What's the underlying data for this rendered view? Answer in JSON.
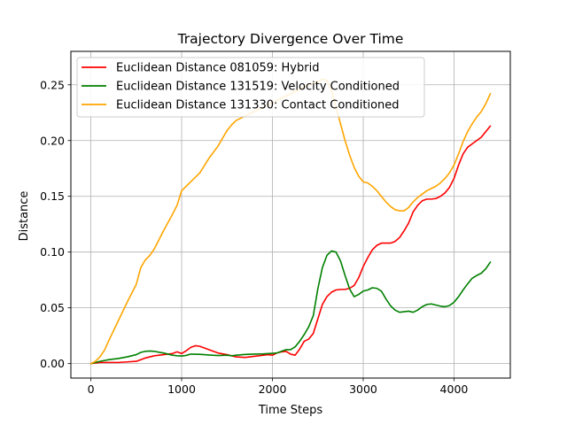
{
  "chart_data": {
    "type": "line",
    "title": "Trajectory Divergence Over Time",
    "xlabel": "Time Steps",
    "ylabel": "Distance",
    "xlim": [
      -220,
      4620
    ],
    "ylim": [
      -0.013,
      0.28
    ],
    "xticks": [
      0,
      1000,
      2000,
      3000,
      4000
    ],
    "xtick_labels": [
      "0",
      "1000",
      "2000",
      "3000",
      "4000"
    ],
    "yticks": [
      0.0,
      0.05,
      0.1,
      0.15,
      0.2,
      0.25
    ],
    "ytick_labels": [
      "0.00",
      "0.05",
      "0.10",
      "0.15",
      "0.20",
      "0.25"
    ],
    "grid": true,
    "legend_position": "top-left",
    "series": [
      {
        "name": "Euclidean Distance 081059: Hybrid",
        "color": "#ff0000",
        "x": [
          0,
          100,
          200,
          300,
          400,
          500,
          550,
          600,
          700,
          800,
          900,
          950,
          1000,
          1050,
          1100,
          1150,
          1200,
          1300,
          1400,
          1500,
          1600,
          1700,
          1800,
          1900,
          1950,
          2000,
          2050,
          2100,
          2150,
          2200,
          2250,
          2300,
          2350,
          2400,
          2450,
          2500,
          2550,
          2600,
          2650,
          2700,
          2750,
          2800,
          2850,
          2900,
          2950,
          3000,
          3050,
          3100,
          3150,
          3200,
          3250,
          3300,
          3350,
          3400,
          3450,
          3500,
          3550,
          3600,
          3650,
          3700,
          3750,
          3800,
          3850,
          3900,
          3950,
          4000,
          4050,
          4100,
          4150,
          4200,
          4250,
          4300,
          4350,
          4400
        ],
        "y": [
          0.0,
          0.001,
          0.001,
          0.001,
          0.0015,
          0.002,
          0.0035,
          0.005,
          0.007,
          0.008,
          0.009,
          0.0105,
          0.009,
          0.0115,
          0.0145,
          0.016,
          0.0155,
          0.0125,
          0.0095,
          0.008,
          0.006,
          0.0055,
          0.0065,
          0.0075,
          0.008,
          0.0075,
          0.0095,
          0.0105,
          0.011,
          0.0085,
          0.0075,
          0.013,
          0.02,
          0.022,
          0.027,
          0.04,
          0.053,
          0.06,
          0.064,
          0.066,
          0.0665,
          0.0665,
          0.0675,
          0.07,
          0.077,
          0.087,
          0.095,
          0.102,
          0.106,
          0.108,
          0.108,
          0.108,
          0.1095,
          0.113,
          0.119,
          0.126,
          0.136,
          0.142,
          0.146,
          0.1475,
          0.1475,
          0.148,
          0.15,
          0.153,
          0.158,
          0.166,
          0.178,
          0.188,
          0.194,
          0.197,
          0.2,
          0.203,
          0.208,
          0.213
        ]
      },
      {
        "name": "Euclidean Distance 131519: Velocity Conditioned",
        "color": "#008000",
        "x": [
          0,
          100,
          200,
          300,
          400,
          500,
          550,
          600,
          650,
          700,
          750,
          800,
          850,
          900,
          950,
          1000,
          1050,
          1100,
          1200,
          1300,
          1400,
          1500,
          1550,
          1600,
          1700,
          1800,
          1900,
          2000,
          2050,
          2100,
          2150,
          2200,
          2250,
          2300,
          2350,
          2400,
          2450,
          2500,
          2550,
          2600,
          2650,
          2700,
          2750,
          2800,
          2850,
          2900,
          2950,
          3000,
          3050,
          3100,
          3150,
          3200,
          3250,
          3300,
          3350,
          3400,
          3450,
          3500,
          3550,
          3600,
          3650,
          3700,
          3750,
          3800,
          3850,
          3900,
          3950,
          4000,
          4050,
          4100,
          4150,
          4200,
          4250,
          4300,
          4350,
          4400
        ],
        "y": [
          0.0,
          0.002,
          0.0035,
          0.0045,
          0.006,
          0.008,
          0.01,
          0.011,
          0.0113,
          0.011,
          0.0102,
          0.0095,
          0.0085,
          0.0075,
          0.007,
          0.0068,
          0.0073,
          0.0085,
          0.0083,
          0.0077,
          0.0072,
          0.0075,
          0.007,
          0.0075,
          0.0082,
          0.0085,
          0.0087,
          0.0092,
          0.0095,
          0.011,
          0.0125,
          0.0125,
          0.015,
          0.02,
          0.026,
          0.033,
          0.043,
          0.067,
          0.086,
          0.097,
          0.101,
          0.1,
          0.092,
          0.079,
          0.067,
          0.06,
          0.062,
          0.065,
          0.066,
          0.068,
          0.0675,
          0.065,
          0.058,
          0.052,
          0.048,
          0.046,
          0.0465,
          0.047,
          0.046,
          0.048,
          0.051,
          0.053,
          0.0535,
          0.0525,
          0.0515,
          0.051,
          0.052,
          0.055,
          0.06,
          0.066,
          0.0715,
          0.0765,
          0.079,
          0.081,
          0.085,
          0.091
        ]
      },
      {
        "name": "Euclidean Distance 131330: Contact Conditioned",
        "color": "#ffa500",
        "x": [
          0,
          50,
          100,
          150,
          200,
          300,
          400,
          450,
          500,
          550,
          600,
          650,
          700,
          800,
          900,
          950,
          1000,
          1100,
          1200,
          1300,
          1400,
          1500,
          1550,
          1600,
          1700,
          1800,
          1900,
          2000,
          2100,
          2200,
          2300,
          2400,
          2500,
          2550,
          2600,
          2650,
          2700,
          2750,
          2800,
          2850,
          2900,
          2950,
          3000,
          3050,
          3100,
          3150,
          3200,
          3250,
          3300,
          3350,
          3400,
          3450,
          3500,
          3550,
          3600,
          3650,
          3700,
          3750,
          3800,
          3850,
          3900,
          3950,
          4000,
          4050,
          4100,
          4150,
          4200,
          4250,
          4300,
          4350,
          4400
        ],
        "y": [
          0.0,
          0.002,
          0.006,
          0.012,
          0.021,
          0.038,
          0.055,
          0.063,
          0.071,
          0.086,
          0.093,
          0.097,
          0.103,
          0.119,
          0.134,
          0.142,
          0.155,
          0.163,
          0.171,
          0.184,
          0.195,
          0.209,
          0.214,
          0.218,
          0.222,
          0.226,
          0.23,
          0.234,
          0.238,
          0.242,
          0.246,
          0.25,
          0.253,
          0.255,
          0.254,
          0.245,
          0.23,
          0.215,
          0.2,
          0.187,
          0.176,
          0.168,
          0.163,
          0.162,
          0.159,
          0.155,
          0.15,
          0.145,
          0.141,
          0.138,
          0.137,
          0.137,
          0.14,
          0.145,
          0.149,
          0.152,
          0.155,
          0.157,
          0.159,
          0.162,
          0.166,
          0.171,
          0.178,
          0.188,
          0.199,
          0.208,
          0.215,
          0.221,
          0.226,
          0.233,
          0.242
        ]
      }
    ]
  }
}
